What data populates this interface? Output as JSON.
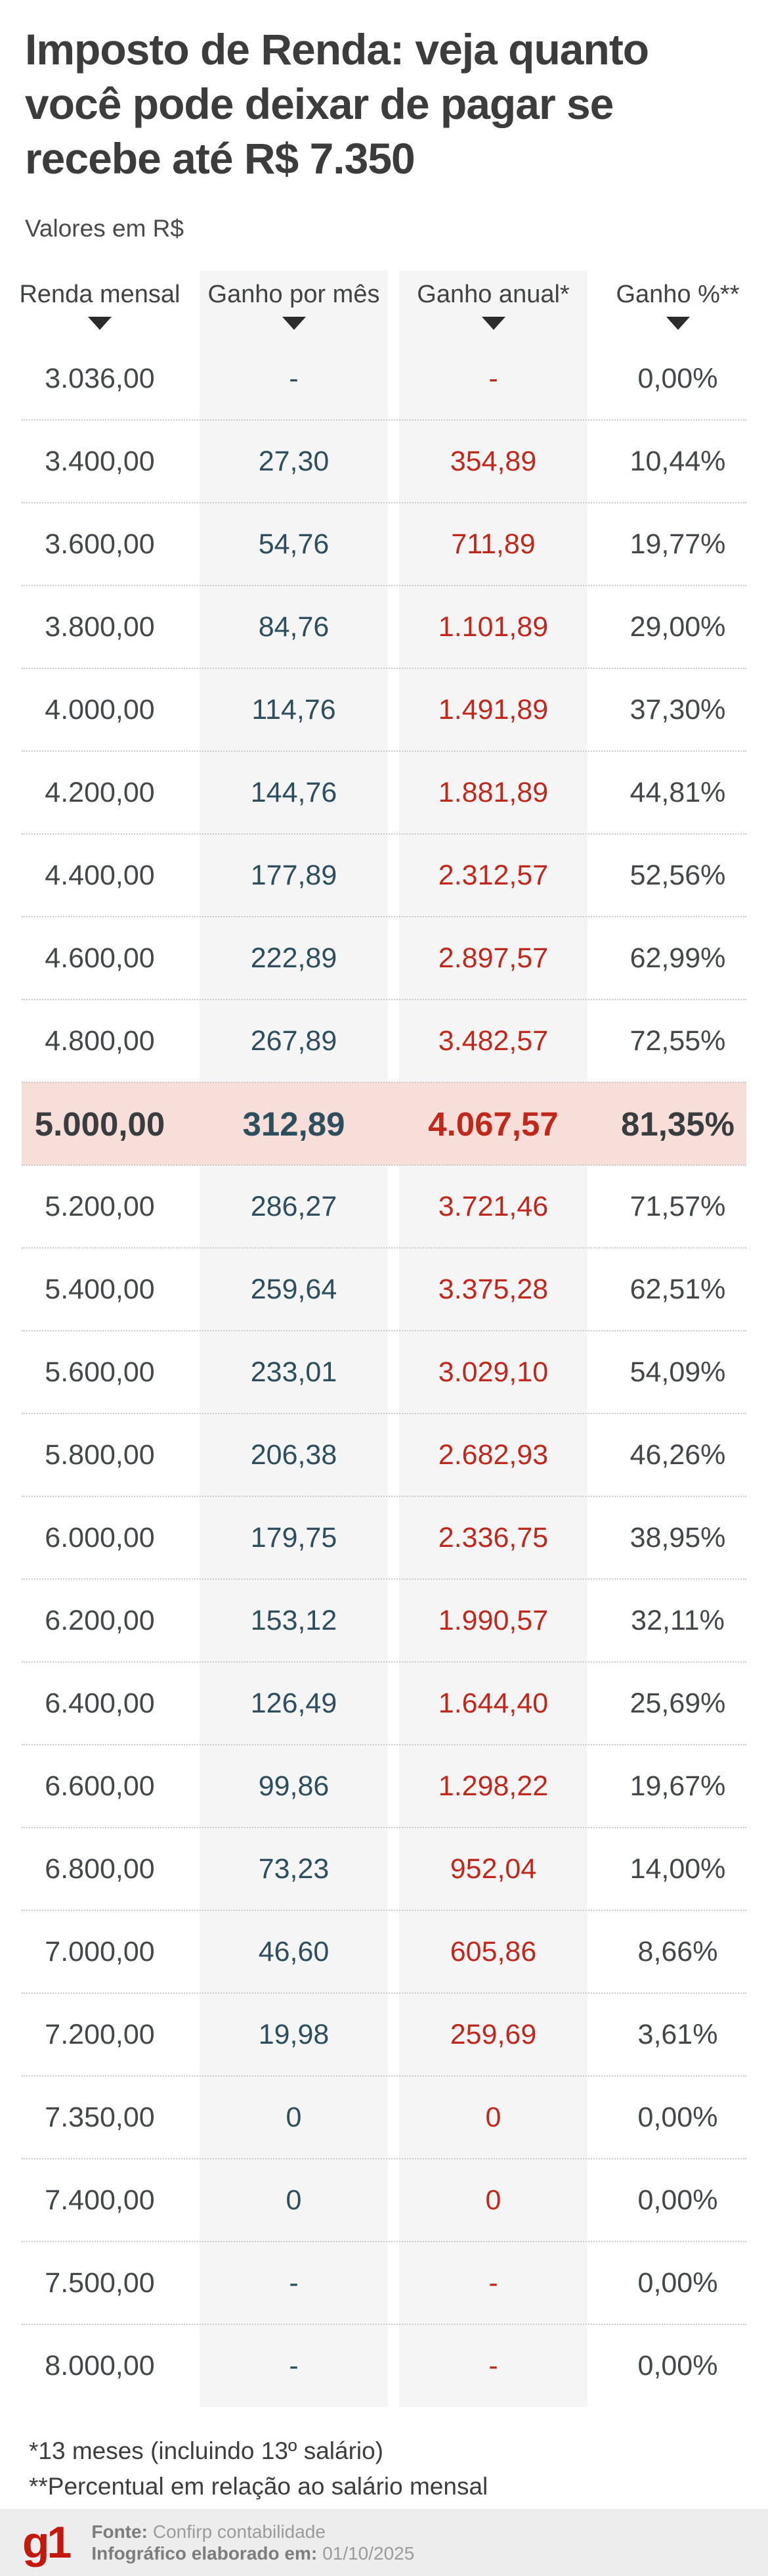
{
  "header": {
    "title": "Imposto de Renda: veja quanto você pode deixar de pagar se recebe até R$ 7.350",
    "subtitle": "Valores em R$"
  },
  "chart_data": {
    "type": "table",
    "title": "Imposto de Renda: veja quanto você pode deixar de pagar se recebe até R$ 7.350",
    "unit_note": "Valores em R$",
    "columns": [
      "Renda mensal",
      "Ganho por mês",
      "Ganho anual*",
      "Ganho %**"
    ],
    "highlight_index": 9,
    "rows": [
      [
        "3.036,00",
        "-",
        "-",
        "0,00%"
      ],
      [
        "3.400,00",
        "27,30",
        "354,89",
        "10,44%"
      ],
      [
        "3.600,00",
        "54,76",
        "711,89",
        "19,77%"
      ],
      [
        "3.800,00",
        "84,76",
        "1.101,89",
        "29,00%"
      ],
      [
        "4.000,00",
        "114,76",
        "1.491,89",
        "37,30%"
      ],
      [
        "4.200,00",
        "144,76",
        "1.881,89",
        "44,81%"
      ],
      [
        "4.400,00",
        "177,89",
        "2.312,57",
        "52,56%"
      ],
      [
        "4.600,00",
        "222,89",
        "2.897,57",
        "62,99%"
      ],
      [
        "4.800,00",
        "267,89",
        "3.482,57",
        "72,55%"
      ],
      [
        "5.000,00",
        "312,89",
        "4.067,57",
        "81,35%"
      ],
      [
        "5.200,00",
        "286,27",
        "3.721,46",
        "71,57%"
      ],
      [
        "5.400,00",
        "259,64",
        "3.375,28",
        "62,51%"
      ],
      [
        "5.600,00",
        "233,01",
        "3.029,10",
        "54,09%"
      ],
      [
        "5.800,00",
        "206,38",
        "2.682,93",
        "46,26%"
      ],
      [
        "6.000,00",
        "179,75",
        "2.336,75",
        "38,95%"
      ],
      [
        "6.200,00",
        "153,12",
        "1.990,57",
        "32,11%"
      ],
      [
        "6.400,00",
        "126,49",
        "1.644,40",
        "25,69%"
      ],
      [
        "6.600,00",
        "99,86",
        "1.298,22",
        "19,67%"
      ],
      [
        "6.800,00",
        "73,23",
        "952,04",
        "14,00%"
      ],
      [
        "7.000,00",
        "46,60",
        "605,86",
        "8,66%"
      ],
      [
        "7.200,00",
        "19,98",
        "259,69",
        "3,61%"
      ],
      [
        "7.350,00",
        "0",
        "0",
        "0,00%"
      ],
      [
        "7.400,00",
        "0",
        "0",
        "0,00%"
      ],
      [
        "7.500,00",
        "-",
        "-",
        "0,00%"
      ],
      [
        "8.000,00",
        "-",
        "-",
        "0,00%"
      ]
    ]
  },
  "footnotes": [
    "*13 meses (incluindo 13º salário)",
    "**Percentual em relação ao salário mensal"
  ],
  "footer": {
    "logo_text": "g1",
    "source_label": "Fonte:",
    "source_value": "Confirp contabilidade",
    "made_label": "Infográfico elaborado em:",
    "made_value": "01/10/2025"
  },
  "colors": {
    "title_text": "#3c3c3c",
    "value_text": "#44474a",
    "monthly_gain_blue": "#2c4e5d",
    "annual_gain_red": "#c0281c",
    "highlight_row_bg": "#f8ded9",
    "column_bg": "#f5f5f5",
    "footer_bg": "#ededed",
    "logo_red": "#c2180d"
  }
}
